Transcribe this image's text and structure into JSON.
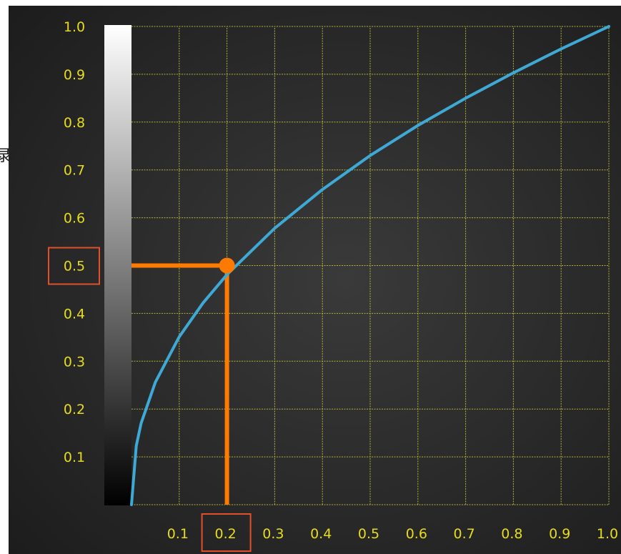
{
  "chart_data": {
    "type": "line",
    "title": "",
    "xlabel": "",
    "ylabel": "",
    "xlim": [
      0,
      1.0
    ],
    "ylim": [
      0,
      1.0
    ],
    "grid": true,
    "x_tick_labels": [
      "0.1",
      "0.2",
      "0.3",
      "0.4",
      "0.5",
      "0.6",
      "0.7",
      "0.8",
      "0.9",
      "1.0"
    ],
    "y_tick_labels": [
      "0.1",
      "0.2",
      "0.3",
      "0.4",
      "0.5",
      "0.6",
      "0.7",
      "0.8",
      "0.9",
      "1.0"
    ],
    "series": [
      {
        "color": "#3fa9d6",
        "x": [
          0,
          0.01,
          0.02,
          0.05,
          0.1,
          0.15,
          0.2,
          0.3,
          0.4,
          0.5,
          0.6,
          0.7,
          0.8,
          0.9,
          1.0
        ],
        "y": [
          0,
          0.123,
          0.17,
          0.256,
          0.351,
          0.422,
          0.481,
          0.578,
          0.659,
          0.73,
          0.793,
          0.85,
          0.903,
          0.953,
          1.0
        ]
      }
    ],
    "highlight_point": {
      "x": 0.2,
      "y": 0.5,
      "color": "#ff7a00"
    },
    "highlighted_x_tick": "0.2",
    "highlighted_y_tick": "0.5",
    "gradient_bar": {
      "from_color": "#000000",
      "to_color": "#ffffff"
    },
    "colors": {
      "background": "#2b2b2b",
      "grid": "#c8c83c",
      "tick_text": "#e6dc1e",
      "highlight_box": "#e0502a"
    }
  },
  "edge_glyph": "录"
}
